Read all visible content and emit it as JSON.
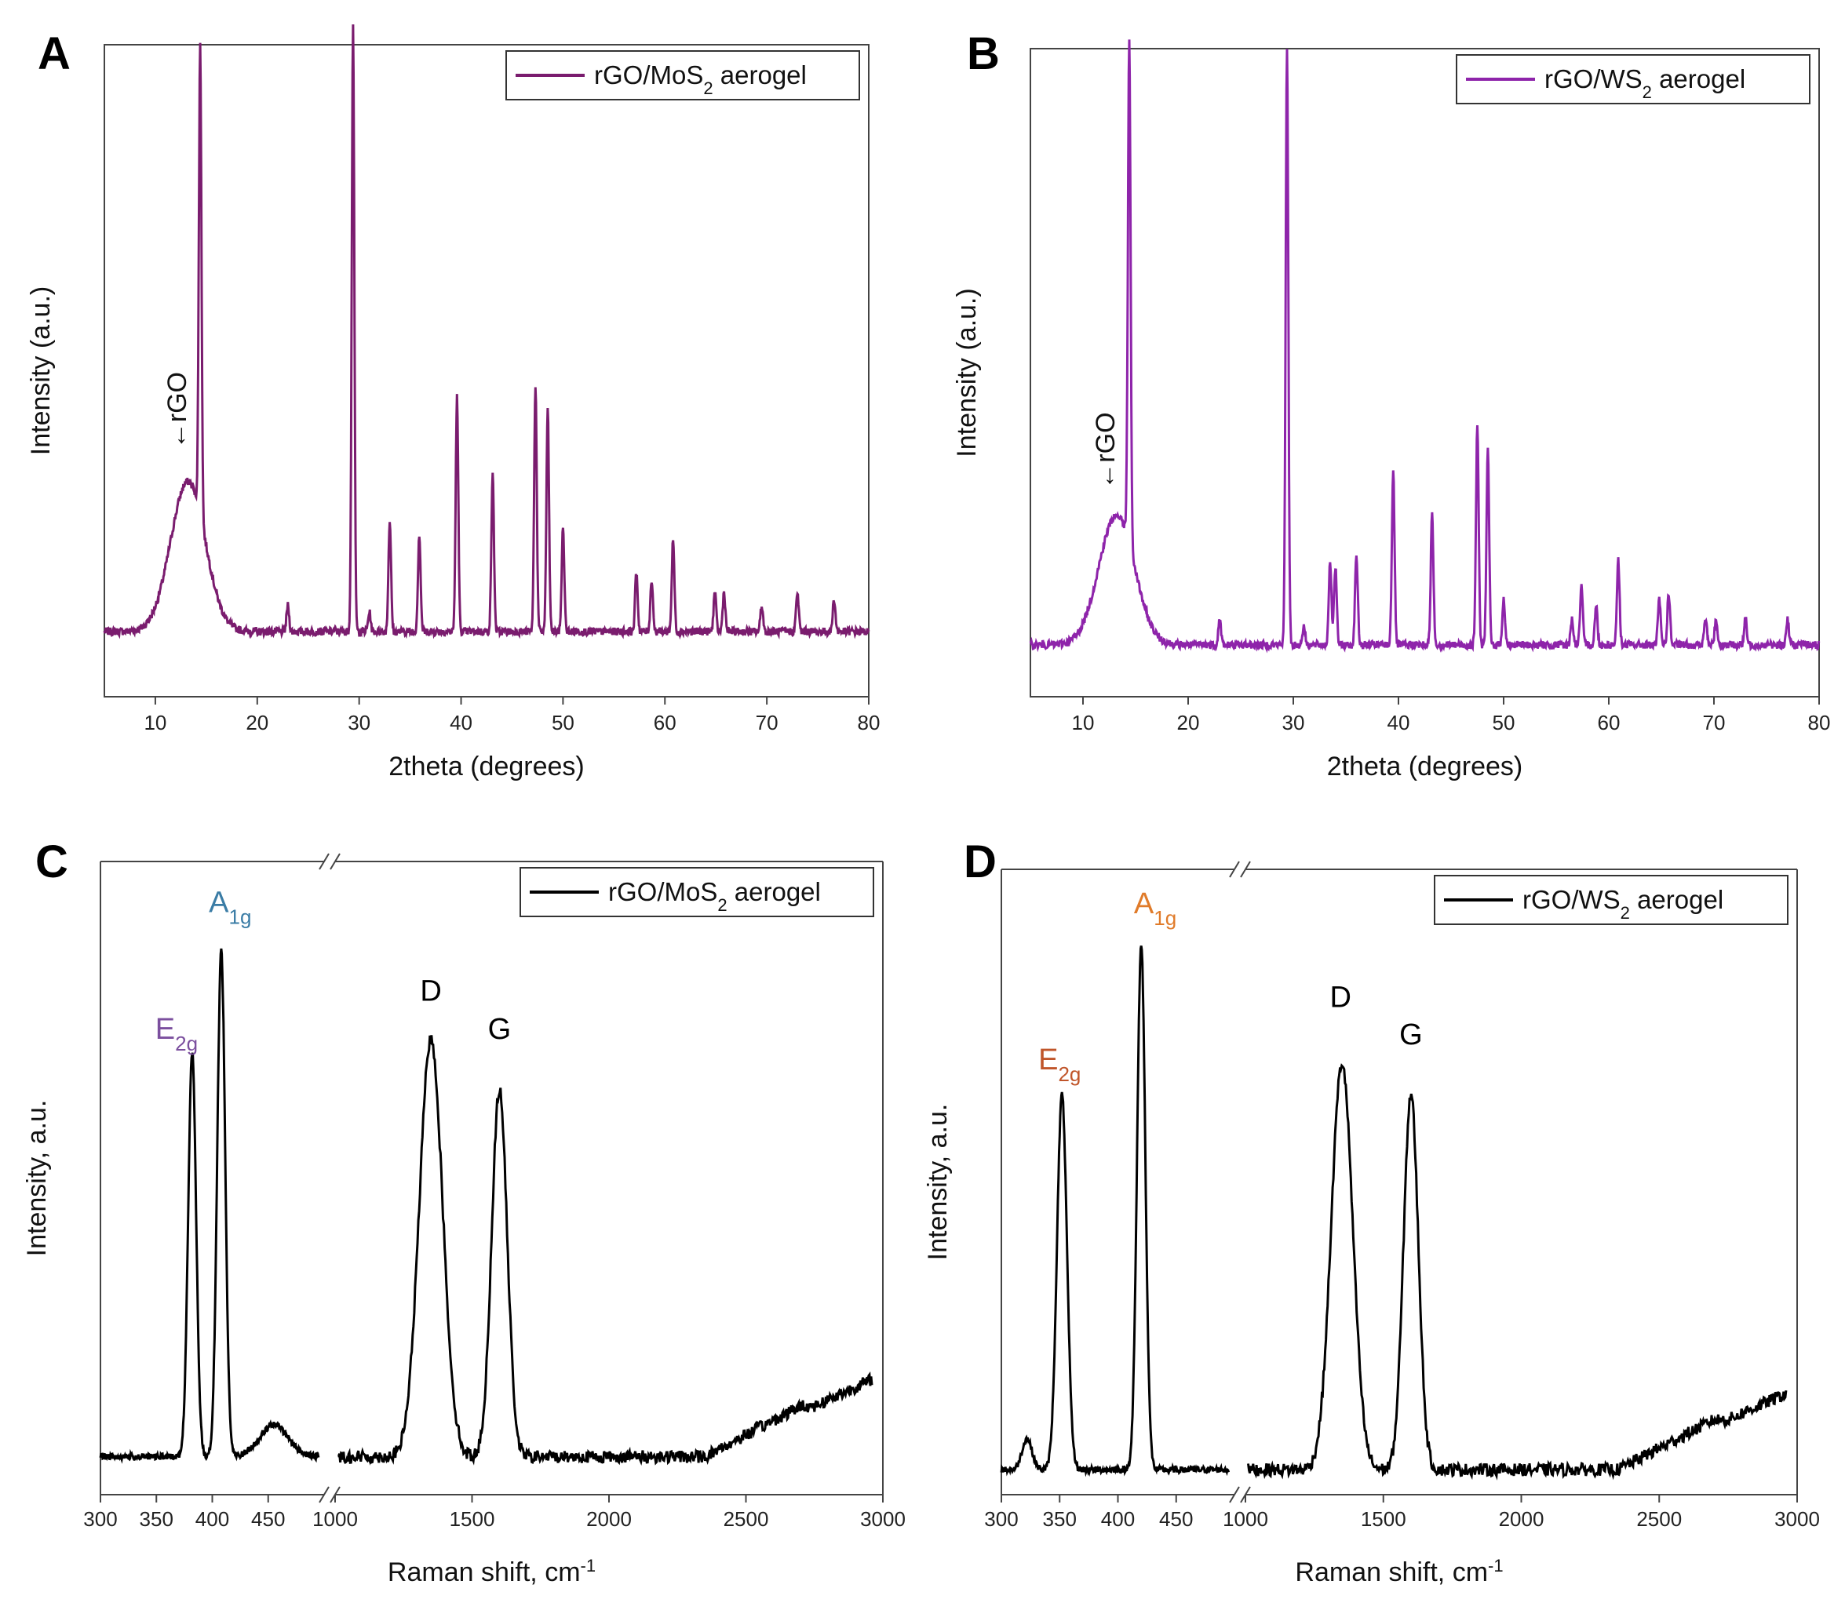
{
  "chart_data": [
    {
      "id": "A",
      "panel_label": "A",
      "type": "line",
      "legend": {
        "label": "rGO/MoS2 aerogel",
        "label_main": "rGO/MoS",
        "label_sub": "2",
        "label_tail": " aerogel",
        "placement": "top-right"
      },
      "xlabel": "2theta (degrees)",
      "ylabel": "Intensity (a.u.)",
      "xlim": [
        5,
        80
      ],
      "ylim": [
        0,
        1
      ],
      "xticks": [
        10,
        20,
        30,
        40,
        50,
        60,
        70,
        80
      ],
      "tick_labels": [
        "10",
        "20",
        "30",
        "40",
        "50",
        "60",
        "70",
        "80"
      ],
      "color": "#7a1c6e",
      "annotation": {
        "text": "←rGO",
        "x": 13,
        "y": 0.38,
        "rotation": -90
      },
      "baseline": 0.1,
      "broad_peaks": [
        {
          "x": 13.2,
          "height": 0.23,
          "width": 2.4
        }
      ],
      "peaks": [
        [
          14.4,
          0.72
        ],
        [
          29.4,
          0.93
        ],
        [
          33.0,
          0.17
        ],
        [
          35.9,
          0.15
        ],
        [
          39.6,
          0.36
        ],
        [
          43.1,
          0.24
        ],
        [
          47.3,
          0.38
        ],
        [
          48.5,
          0.34
        ],
        [
          50.0,
          0.16
        ],
        [
          57.2,
          0.09
        ],
        [
          58.7,
          0.08
        ],
        [
          60.8,
          0.14
        ],
        [
          64.9,
          0.06
        ],
        [
          65.8,
          0.06
        ],
        [
          69.5,
          0.04
        ],
        [
          73.0,
          0.06
        ],
        [
          76.6,
          0.05
        ],
        [
          23.0,
          0.04
        ],
        [
          31.0,
          0.03
        ]
      ]
    },
    {
      "id": "B",
      "panel_label": "B",
      "type": "line",
      "legend": {
        "label": "rGO/WS2 aerogel",
        "label_main": "rGO/WS",
        "label_sub": "2",
        "label_tail": " aerogel",
        "placement": "top-right"
      },
      "xlabel": "2theta (degrees)",
      "ylabel": "Intensity (a.u.)",
      "xlim": [
        5,
        80
      ],
      "ylim": [
        0,
        1
      ],
      "xticks": [
        10,
        20,
        30,
        40,
        50,
        60,
        70,
        80
      ],
      "tick_labels": [
        "10",
        "20",
        "30",
        "40",
        "50",
        "60",
        "70",
        "80"
      ],
      "color": "#8e24aa",
      "annotation": {
        "text": "←rGO",
        "x": 13,
        "y": 0.32,
        "rotation": -90
      },
      "baseline": 0.08,
      "broad_peaks": [
        {
          "x": 13.2,
          "height": 0.2,
          "width": 2.4
        }
      ],
      "peaks": [
        [
          14.4,
          0.78
        ],
        [
          29.4,
          0.92
        ],
        [
          33.5,
          0.13
        ],
        [
          34.0,
          0.12
        ],
        [
          36.0,
          0.14
        ],
        [
          39.5,
          0.27
        ],
        [
          43.2,
          0.2
        ],
        [
          47.5,
          0.34
        ],
        [
          48.5,
          0.3
        ],
        [
          50.0,
          0.07
        ],
        [
          56.5,
          0.04
        ],
        [
          57.4,
          0.09
        ],
        [
          58.8,
          0.06
        ],
        [
          60.9,
          0.13
        ],
        [
          64.8,
          0.07
        ],
        [
          65.7,
          0.08
        ],
        [
          69.2,
          0.04
        ],
        [
          70.2,
          0.04
        ],
        [
          73.0,
          0.04
        ],
        [
          77.0,
          0.04
        ],
        [
          23.0,
          0.04
        ],
        [
          31.0,
          0.03
        ]
      ]
    },
    {
      "id": "C",
      "panel_label": "C",
      "type": "line",
      "legend": {
        "label": "rGO/MoS2 aerogel",
        "label_main": "rGO/MoS",
        "label_sub": "2",
        "label_tail": " aerogel",
        "placement": "top-right"
      },
      "xlabel": "Raman shift, cm-1",
      "xlabel_main": "Raman shift, cm",
      "xlabel_sup": "-1",
      "ylabel": "Intensity, a.u.",
      "broken_axis": true,
      "segment1_xlim": [
        300,
        500
      ],
      "segment2_xlim": [
        1000,
        3000
      ],
      "ylim": [
        0,
        1
      ],
      "segment1_ticks": [
        300,
        350,
        400,
        450
      ],
      "segment1_tick_labels": [
        "300",
        "350",
        "400",
        "450"
      ],
      "segment2_ticks": [
        1000,
        1500,
        2000,
        2500,
        3000
      ],
      "segment2_tick_labels": [
        "1000",
        "1500",
        "2000",
        "2500",
        "3000"
      ],
      "color": "#000000",
      "baseline1": 0.06,
      "baseline2": 0.06,
      "seg1_peaks": [
        [
          382,
          0.64,
          5
        ],
        [
          408,
          0.8,
          5
        ],
        [
          455,
          0.05,
          18
        ]
      ],
      "seg1_extent": [
        300,
        495
      ],
      "seg2_start": 1010,
      "seg2_peaks": [
        [
          1350,
          0.66,
          60
        ],
        [
          1600,
          0.58,
          40
        ]
      ],
      "seg2_rise": [
        2700,
        0.08
      ],
      "peak_labels": [
        {
          "main": "E",
          "sub": "2g",
          "x": 368,
          "y": 0.72,
          "color": "#7b4f9e",
          "segment": 1
        },
        {
          "main": "A",
          "sub": "1g",
          "x": 416,
          "y": 0.92,
          "color": "#3a7ca5",
          "segment": 1
        },
        {
          "main": "D",
          "sub": "",
          "x": 1350,
          "y": 0.78,
          "color": "#000000",
          "segment": 2
        },
        {
          "main": "G",
          "sub": "",
          "x": 1600,
          "y": 0.72,
          "color": "#000000",
          "segment": 2
        }
      ]
    },
    {
      "id": "D",
      "panel_label": "D",
      "type": "line",
      "legend": {
        "label": "rGO/WS2 aerogel",
        "label_main": "rGO/WS",
        "label_sub": "2",
        "label_tail": " aerogel",
        "placement": "top-right"
      },
      "xlabel": "Raman shift, cm-1",
      "xlabel_main": "Raman shift, cm",
      "xlabel_sup": "-1",
      "ylabel": "Intensity, a.u.",
      "broken_axis": true,
      "segment1_xlim": [
        300,
        500
      ],
      "segment2_xlim": [
        1000,
        3000
      ],
      "ylim": [
        0,
        1
      ],
      "segment1_ticks": [
        300,
        350,
        400,
        450
      ],
      "segment1_tick_labels": [
        "300",
        "350",
        "400",
        "450"
      ],
      "segment2_ticks": [
        1000,
        1500,
        2000,
        2500,
        3000
      ],
      "segment2_tick_labels": [
        "1000",
        "1500",
        "2000",
        "2500",
        "3000"
      ],
      "color": "#000000",
      "baseline1": 0.04,
      "baseline2": 0.04,
      "seg1_peaks": [
        [
          352,
          0.6,
          6
        ],
        [
          420,
          0.84,
          5
        ],
        [
          322,
          0.05,
          6
        ]
      ],
      "seg1_extent": [
        300,
        495
      ],
      "seg2_start": 1010,
      "seg2_peaks": [
        [
          1350,
          0.65,
          55
        ],
        [
          1600,
          0.6,
          38
        ]
      ],
      "seg2_rise": [
        2700,
        0.08
      ],
      "peak_labels": [
        {
          "main": "E",
          "sub": "2g",
          "x": 350,
          "y": 0.68,
          "color": "#c0552a",
          "segment": 1
        },
        {
          "main": "A",
          "sub": "1g",
          "x": 432,
          "y": 0.93,
          "color": "#e07b2a",
          "segment": 1
        },
        {
          "main": "D",
          "sub": "",
          "x": 1345,
          "y": 0.78,
          "color": "#000000",
          "segment": 2
        },
        {
          "main": "G",
          "sub": "",
          "x": 1600,
          "y": 0.72,
          "color": "#000000",
          "segment": 2
        }
      ]
    }
  ]
}
